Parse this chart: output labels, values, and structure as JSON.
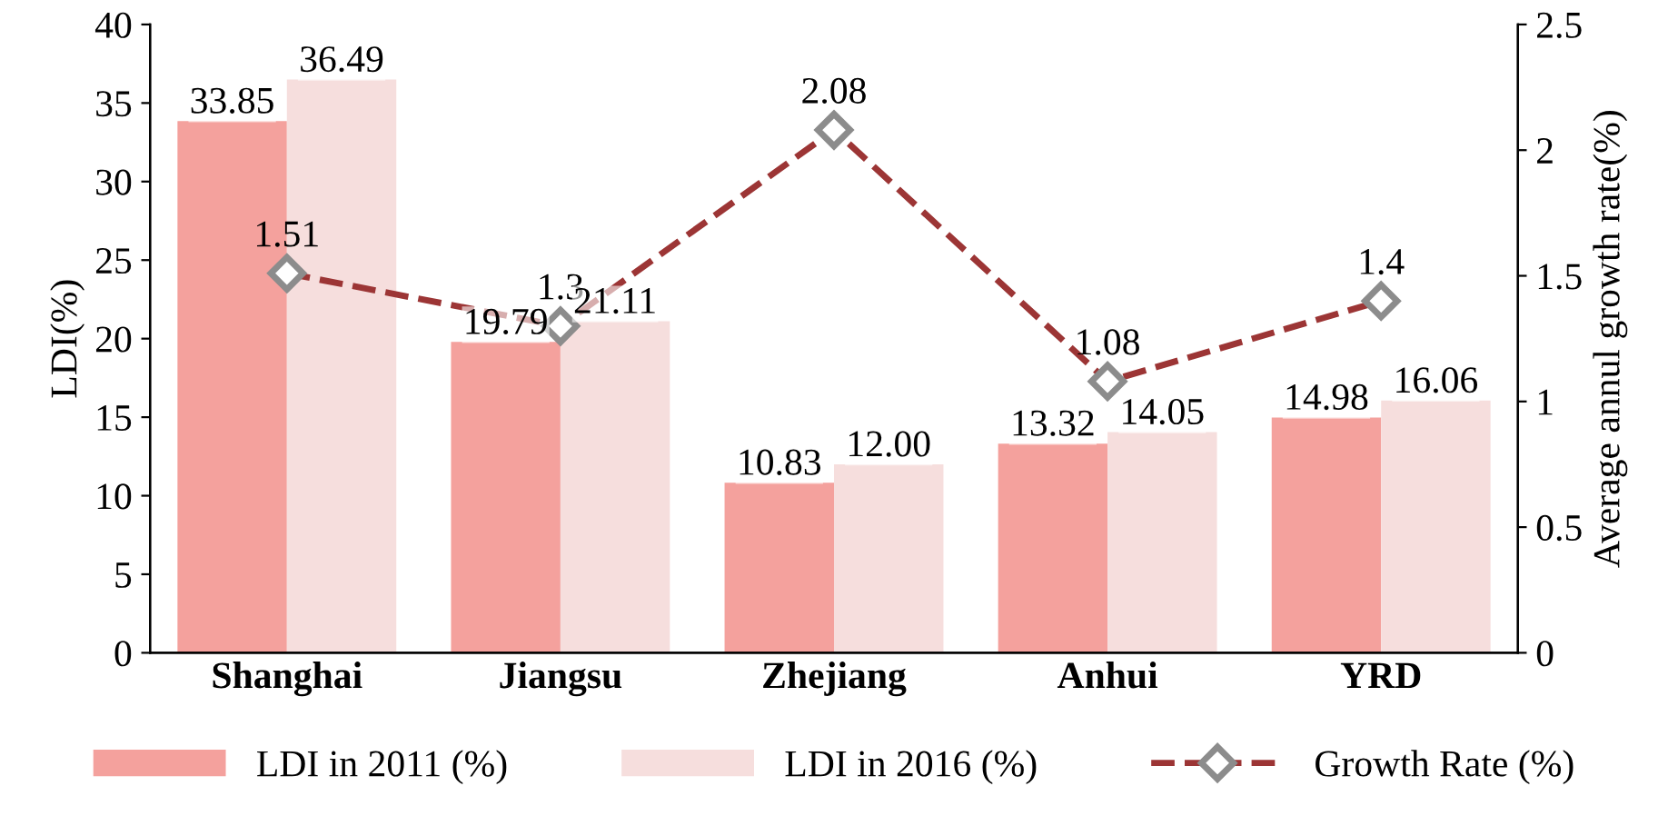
{
  "chart_data": {
    "type": "bar",
    "categories": [
      "Shanghai",
      "Jiangsu",
      "Zhejiang",
      "Anhui",
      "YRD"
    ],
    "ylabel": "LDI(%)",
    "y2label": "Average annul growth rate(%)",
    "ylim": [
      0,
      40
    ],
    "yticks": [
      0,
      5,
      10,
      15,
      20,
      25,
      30,
      35,
      40
    ],
    "y2lim": [
      0,
      2.5
    ],
    "y2ticks": [
      0,
      0.5,
      1,
      1.5,
      2,
      2.5
    ],
    "grid": false,
    "legend": "bottom",
    "series": [
      {
        "name": "LDI in 2011 (%)",
        "color": "#f4a19d",
        "values": [
          33.85,
          19.79,
          10.83,
          13.32,
          14.98
        ],
        "value_labels": [
          "33.85",
          "19.79",
          "10.83",
          "13.32",
          "14.98"
        ]
      },
      {
        "name": "LDI in 2016 (%)",
        "color": "#f6dedd",
        "values": [
          36.49,
          21.11,
          12.0,
          14.05,
          16.06
        ],
        "value_labels": [
          "36.49",
          "21.11",
          "12.00",
          "14.05",
          "16.06"
        ]
      },
      {
        "name": "Growth Rate (%)",
        "type": "line",
        "axis": "y2",
        "color": "#9c3535",
        "marker": "diamond",
        "line_style": "dashed",
        "values": [
          1.51,
          1.3,
          2.08,
          1.08,
          1.4
        ],
        "value_labels": [
          "1.51",
          "1.3",
          "2.08",
          "1.08",
          "1.4"
        ]
      }
    ]
  }
}
